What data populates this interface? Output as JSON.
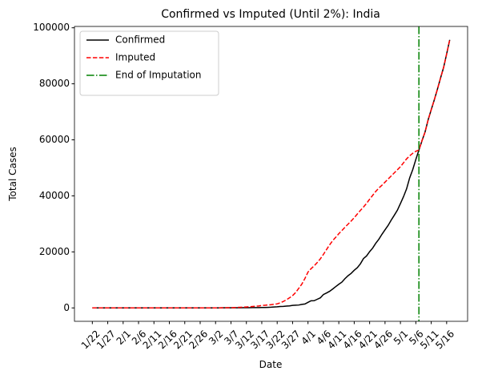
{
  "chart_data": {
    "type": "line",
    "title": "Confirmed vs Imputed (Until 2%): India",
    "xlabel": "Date",
    "ylabel": "Total Cases",
    "categories": [
      "1/22",
      null,
      null,
      null,
      null,
      "1/27",
      null,
      null,
      null,
      null,
      "2/1",
      null,
      null,
      null,
      null,
      "2/6",
      null,
      null,
      null,
      null,
      "2/11",
      null,
      null,
      null,
      null,
      "2/16",
      null,
      null,
      null,
      null,
      "2/21",
      null,
      null,
      null,
      null,
      "2/26",
      null,
      null,
      null,
      null,
      "3/2",
      null,
      null,
      null,
      null,
      "3/7",
      null,
      null,
      null,
      null,
      "3/12",
      null,
      null,
      null,
      null,
      "3/17",
      null,
      null,
      null,
      null,
      "3/22",
      null,
      null,
      null,
      null,
      "3/27",
      null,
      null,
      null,
      null,
      "4/1",
      null,
      null,
      null,
      null,
      "4/6",
      null,
      null,
      null,
      null,
      "4/11",
      null,
      null,
      null,
      null,
      "4/16",
      null,
      null,
      null,
      null,
      "4/21",
      null,
      null,
      null,
      null,
      "4/26",
      null,
      null,
      null,
      null,
      "5/1",
      null,
      null,
      null,
      null,
      "5/6",
      null,
      null,
      null,
      null,
      "5/11",
      null,
      null,
      null,
      null,
      "5/16",
      null
    ],
    "series": [
      {
        "name": "Confirmed",
        "color": "#000000",
        "style": "solid",
        "values": [
          0,
          0,
          0,
          0,
          0,
          0,
          0,
          0,
          1,
          1,
          1,
          2,
          3,
          3,
          3,
          3,
          3,
          3,
          3,
          3,
          3,
          3,
          3,
          3,
          3,
          3,
          3,
          3,
          3,
          3,
          3,
          3,
          3,
          3,
          3,
          3,
          3,
          3,
          3,
          3,
          5,
          5,
          28,
          30,
          31,
          34,
          39,
          43,
          56,
          62,
          73,
          82,
          102,
          113,
          119,
          142,
          156,
          194,
          244,
          330,
          396,
          499,
          536,
          657,
          727,
          887,
          987,
          1024,
          1251,
          1397,
          1998,
          2543,
          2567,
          3082,
          3588,
          4778,
          5311,
          5916,
          6725,
          7598,
          8446,
          9205,
          10453,
          11487,
          12322,
          13430,
          14352,
          15722,
          17615,
          18539,
          20080,
          21370,
          23077,
          24530,
          26283,
          27890,
          29451,
          31324,
          33062,
          34863,
          37257,
          39699,
          42505,
          46437,
          49400,
          52987,
          56351,
          59695,
          62808,
          67161,
          70768,
          74292,
          78055,
          81997,
          85784,
          90648,
          95698
        ]
      },
      {
        "name": "Imputed",
        "color": "#ff0000",
        "style": "dashed",
        "values": [
          0,
          0,
          0,
          0,
          0,
          0,
          0,
          0,
          1,
          1,
          1,
          2,
          3,
          3,
          3,
          3,
          3,
          3,
          3,
          3,
          3,
          3,
          3,
          3,
          3,
          3,
          3,
          3,
          3,
          3,
          3,
          3,
          3,
          3,
          3,
          3,
          3,
          3,
          3,
          3,
          5,
          5,
          30,
          40,
          60,
          90,
          120,
          160,
          210,
          270,
          340,
          420,
          500,
          600,
          700,
          850,
          950,
          1050,
          1150,
          1300,
          1450,
          1800,
          2300,
          2900,
          3600,
          4400,
          5500,
          7000,
          8500,
          10500,
          12800,
          14000,
          15000,
          16200,
          17500,
          19100,
          20800,
          22500,
          24000,
          25200,
          26500,
          27600,
          28800,
          29900,
          31000,
          32200,
          33500,
          34800,
          36000,
          37300,
          38800,
          40200,
          41600,
          42800,
          43800,
          44900,
          46000,
          47100,
          48200,
          49300,
          50400,
          51800,
          53200,
          54300,
          55200,
          55900,
          56351,
          59695,
          62808,
          67161,
          70768,
          74292,
          78055,
          81997,
          85784,
          90648,
          95698
        ]
      }
    ],
    "vline": {
      "name": "End of Imputation",
      "color": "#008000",
      "x": 106
    },
    "ylim": [
      -4785,
      100483
    ],
    "yticks": [
      0,
      20000,
      40000,
      60000,
      80000,
      100000
    ],
    "legend": "upper left"
  }
}
